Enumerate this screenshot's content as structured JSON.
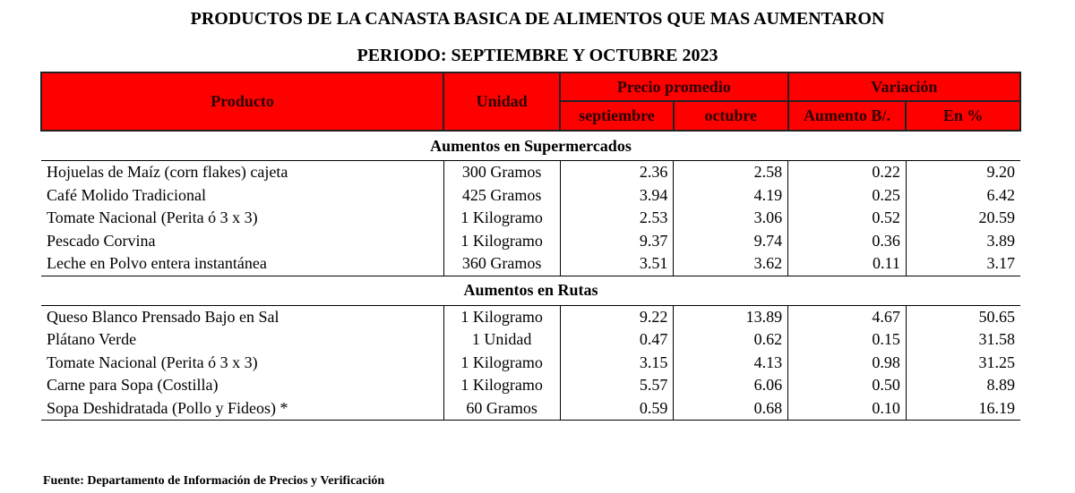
{
  "title": "PRODUCTOS DE LA CANASTA BASICA DE ALIMENTOS QUE MAS AUMENTARON",
  "subtitle": "PERIODO: SEPTIEMBRE Y OCTUBRE 2023",
  "header_color": "#ff0000",
  "headers": {
    "producto": "Producto",
    "unidad": "Unidad",
    "precio_promedio": "Precio promedio",
    "variacion": "Variación",
    "septiembre": "septiembre",
    "octubre": "octubre",
    "aumento": "Aumento B/.",
    "en_pct": "En %"
  },
  "sections": [
    {
      "label": "Aumentos en Supermercados",
      "rows": [
        {
          "producto": "Hojuelas de Maíz (corn flakes) cajeta",
          "unidad": "300 Gramos",
          "sep": "2.36",
          "oct": "2.58",
          "aumento": "0.22",
          "pct": "9.20"
        },
        {
          "producto": "Café Molido Tradicional",
          "unidad": "425 Gramos",
          "sep": "3.94",
          "oct": "4.19",
          "aumento": "0.25",
          "pct": "6.42"
        },
        {
          "producto": "Tomate Nacional (Perita ó 3 x 3)",
          "unidad": "1 Kilogramo",
          "sep": "2.53",
          "oct": "3.06",
          "aumento": "0.52",
          "pct": "20.59"
        },
        {
          "producto": "Pescado Corvina",
          "unidad": "1 Kilogramo",
          "sep": "9.37",
          "oct": "9.74",
          "aumento": "0.36",
          "pct": "3.89"
        },
        {
          "producto": "Leche en Polvo entera instantánea",
          "unidad": "360 Gramos",
          "sep": "3.51",
          "oct": "3.62",
          "aumento": "0.11",
          "pct": "3.17"
        }
      ]
    },
    {
      "label": "Aumentos en Rutas",
      "rows": [
        {
          "producto": "Queso Blanco Prensado Bajo en Sal",
          "unidad": "1 Kilogramo",
          "sep": "9.22",
          "oct": "13.89",
          "aumento": "4.67",
          "pct": "50.65"
        },
        {
          "producto": "Plátano Verde",
          "unidad": "1 Unidad",
          "sep": "0.47",
          "oct": "0.62",
          "aumento": "0.15",
          "pct": "31.58"
        },
        {
          "producto": "Tomate Nacional (Perita ó 3 x 3)",
          "unidad": "1 Kilogramo",
          "sep": "3.15",
          "oct": "4.13",
          "aumento": "0.98",
          "pct": "31.25"
        },
        {
          "producto": "Carne para Sopa (Costilla)",
          "unidad": "1 Kilogramo",
          "sep": "5.57",
          "oct": "6.06",
          "aumento": "0.50",
          "pct": "8.89"
        },
        {
          "producto": "Sopa Deshidratada (Pollo y Fideos) *",
          "unidad": "60 Gramos",
          "sep": "0.59",
          "oct": "0.68",
          "aumento": "0.10",
          "pct": "16.19"
        }
      ]
    }
  ],
  "footer": "Fuente:  Departamento de Información  de Precios y Verificación"
}
